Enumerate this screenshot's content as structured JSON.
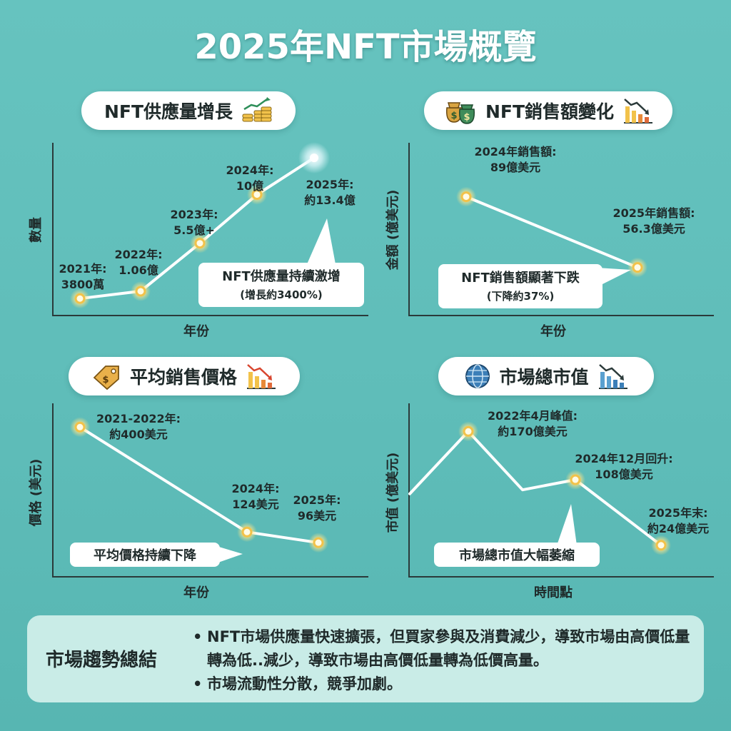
{
  "title": "2025年NFT市場概覽",
  "icons": {
    "supply": "coin-stack-rising-icon",
    "sales": "money-bags-icon",
    "sales_trend": "bar-chart-down-icon",
    "price": "price-tag-icon",
    "price_trend": "bar-chart-down-icon",
    "market": "globe-icon",
    "market_trend": "bar-chart-down-icon"
  },
  "colors": {
    "background": "#5fbdb9",
    "line": "#ffffff",
    "point_glow": "#f2c24a",
    "summary_bg": "#c9ece7"
  },
  "chart_data": [
    {
      "id": "supply",
      "type": "line",
      "title": "NFT供應量增長",
      "xlabel": "年份",
      "ylabel": "數量",
      "x": [
        "2021",
        "2022",
        "2023",
        "2024",
        "2025"
      ],
      "values": [
        38000000,
        106000000,
        550000000,
        1000000000,
        1340000000
      ],
      "point_labels": [
        [
          "2021年:",
          "3800萬"
        ],
        [
          "2022年:",
          "1.06億"
        ],
        [
          "2023年:",
          "5.5億+"
        ],
        [
          "2024年:",
          "10億"
        ],
        [
          "2025年:",
          "約13.4億"
        ]
      ],
      "callout": [
        "NFT供應量持續激增",
        "(增長約3400%)"
      ]
    },
    {
      "id": "sales",
      "type": "line",
      "title": "NFT銷售額變化",
      "xlabel": "年份",
      "ylabel": "金額 (億美元)",
      "x": [
        "2024",
        "2025"
      ],
      "values": [
        89,
        56.3
      ],
      "point_labels": [
        [
          "2024年銷售額:",
          "89億美元"
        ],
        [
          "2025年銷售額:",
          "56.3億美元"
        ]
      ],
      "callout": [
        "NFT銷售額顯著下跌",
        "(下降約37%)"
      ]
    },
    {
      "id": "price",
      "type": "line",
      "title": "平均銷售價格",
      "xlabel": "年份",
      "ylabel": "價格 (美元)",
      "x": [
        "2021-2022",
        "2024",
        "2025"
      ],
      "values": [
        400,
        124,
        96
      ],
      "point_labels": [
        [
          "2021-2022年:",
          "約400美元"
        ],
        [
          "2024年:",
          "124美元"
        ],
        [
          "2025年:",
          "96美元"
        ]
      ],
      "callout": [
        "平均價格持續下降"
      ]
    },
    {
      "id": "market",
      "type": "line",
      "title": "市場總市值",
      "xlabel": "時間點",
      "ylabel": "市值 (億美元)",
      "x": [
        "",
        "2022年4月",
        "",
        "2024年12月",
        "2025年末"
      ],
      "values": [
        90,
        170,
        95,
        108,
        24
      ],
      "point_labels": [
        null,
        [
          "2022年4月峰值:",
          "約170億美元"
        ],
        null,
        [
          "2024年12月回升:",
          "108億美元"
        ],
        [
          "2025年末:",
          "約24億美元"
        ]
      ],
      "callout": [
        "市場總市值大幅萎縮"
      ]
    }
  ],
  "summary": {
    "title": "市場趨勢總結",
    "points": [
      "NFT市場供應量快速擴張，但買家參與及消費減少，導致市場由高價低量轉為低..減少，導致市場由高價低量轉為低價高量。",
      "市場流動性分散，競爭加劇。"
    ]
  }
}
